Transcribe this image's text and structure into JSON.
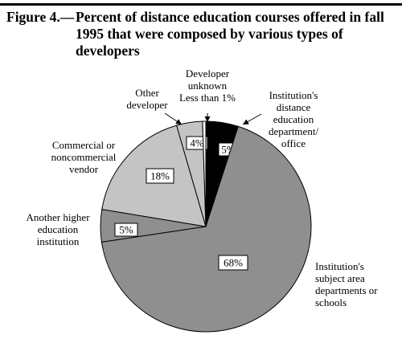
{
  "figure": {
    "number": "Figure 4.—",
    "title": "Percent of distance education courses offered in fall 1995 that were composed by various types of developers"
  },
  "chart_data": {
    "type": "pie",
    "title": "Percent of distance education courses offered in fall 1995 that were composed by various types of developers",
    "slices": [
      {
        "label": "Institution's distance education department/ office",
        "value": 5,
        "display": "5%",
        "color": "#000000"
      },
      {
        "label": "Institution's subject area departments or schools",
        "value": 68,
        "display": "68%",
        "color": "#8f8f8f"
      },
      {
        "label": "Another higher education institution",
        "value": 5,
        "display": "5%",
        "color": "#8f8f8f"
      },
      {
        "label": "Commercial or noncommercial vendor",
        "value": 18,
        "display": "18%",
        "color": "#c4c4c4"
      },
      {
        "label": "Other developer",
        "value": 4,
        "display": "4%",
        "color": "#c4c4c4"
      },
      {
        "label": "Developer unknown",
        "value": 0.5,
        "display": "Less than 1%",
        "color": "#ffffff"
      }
    ],
    "start_angle_deg": 0,
    "direction": "clockwise",
    "grid": false,
    "legend": "none"
  }
}
